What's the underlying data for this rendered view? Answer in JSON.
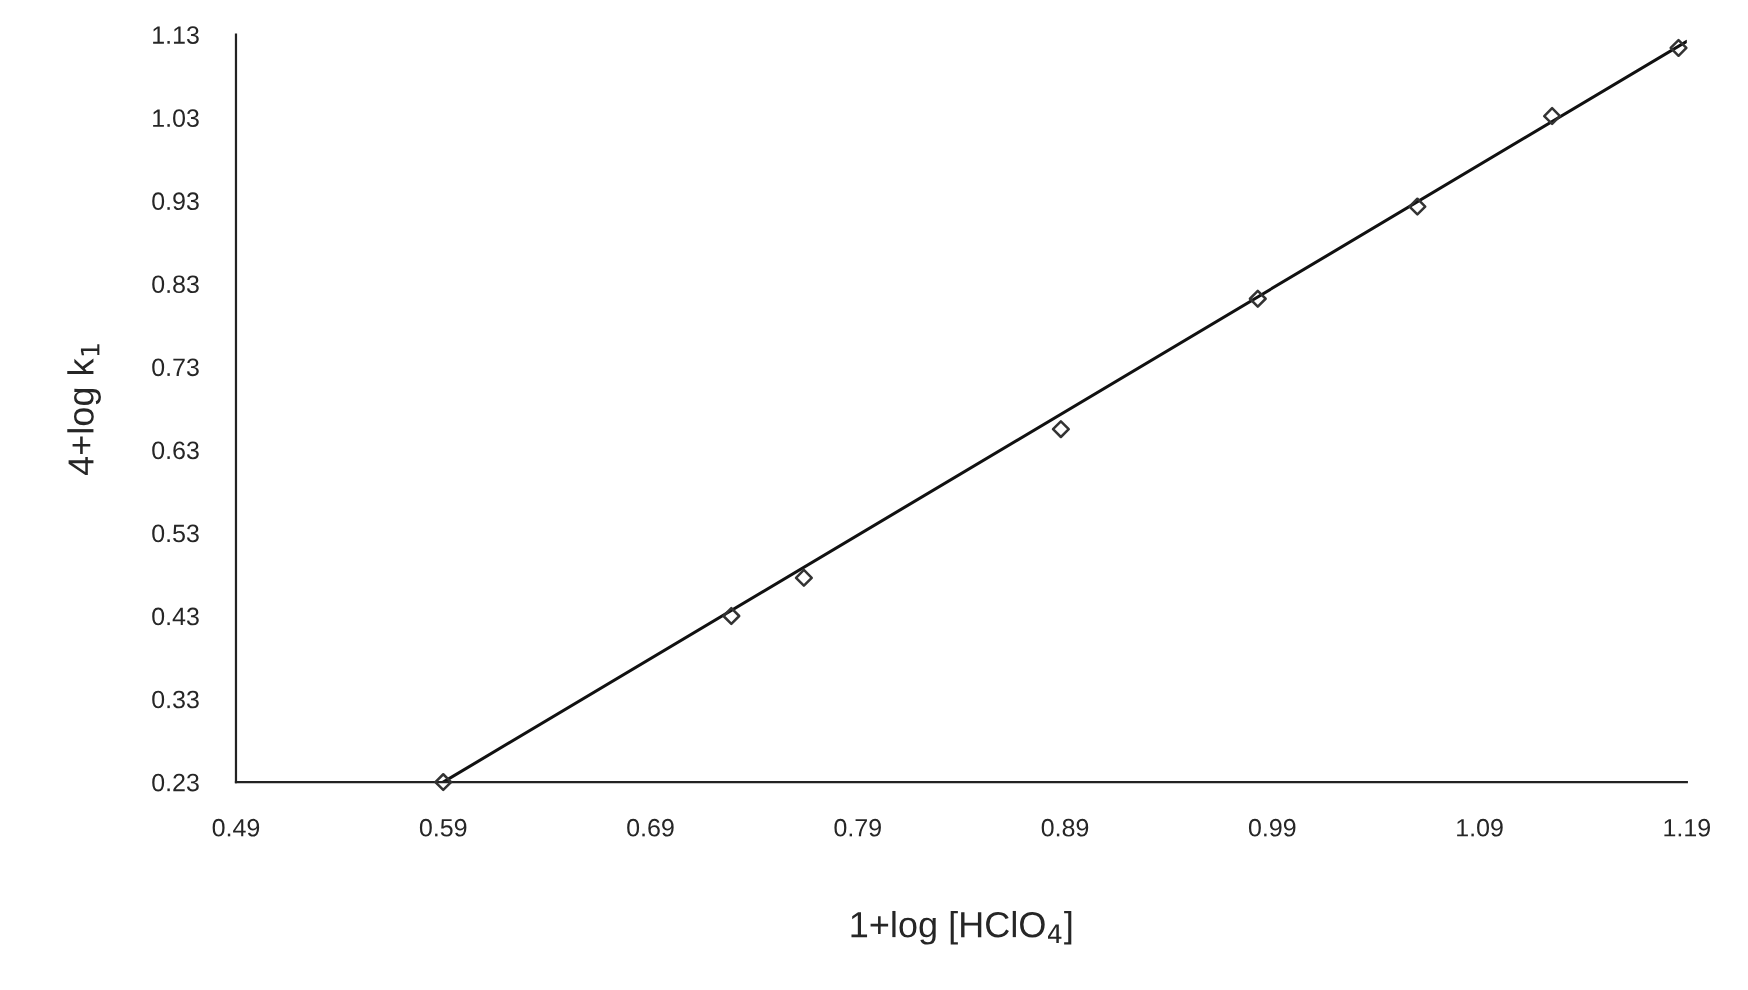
{
  "chart_data": {
    "type": "scatter",
    "xlabel": "1+log [HClO$_{4}$]",
    "ylabel": "4+log k$_{1}$",
    "xlim": [
      0.49,
      1.19
    ],
    "xticks": [
      0.49,
      0.59,
      0.69,
      0.79,
      0.89,
      0.99,
      1.09,
      1.19
    ],
    "ylim": [
      0.23,
      1.13
    ],
    "yticks": [
      0.23,
      0.33,
      0.43,
      0.53,
      0.63,
      0.73,
      0.83,
      0.93,
      1.03,
      1.13
    ],
    "grid": false,
    "legend": false,
    "series": [
      {
        "color": "#333333",
        "marker": "diamond",
        "x": [
          0.59,
          0.729,
          0.764,
          0.888,
          0.983,
          1.06,
          1.125,
          1.186
        ],
        "values": [
          0.23,
          0.43,
          0.476,
          0.655,
          0.812,
          0.923,
          1.032,
          1.114
        ]
      },
      {
        "type": "line",
        "color": "#111111",
        "marker": "none",
        "line_style": "solid",
        "x": [
          0.59,
          1.19
        ],
        "values": [
          0.23,
          1.122
        ]
      }
    ]
  }
}
